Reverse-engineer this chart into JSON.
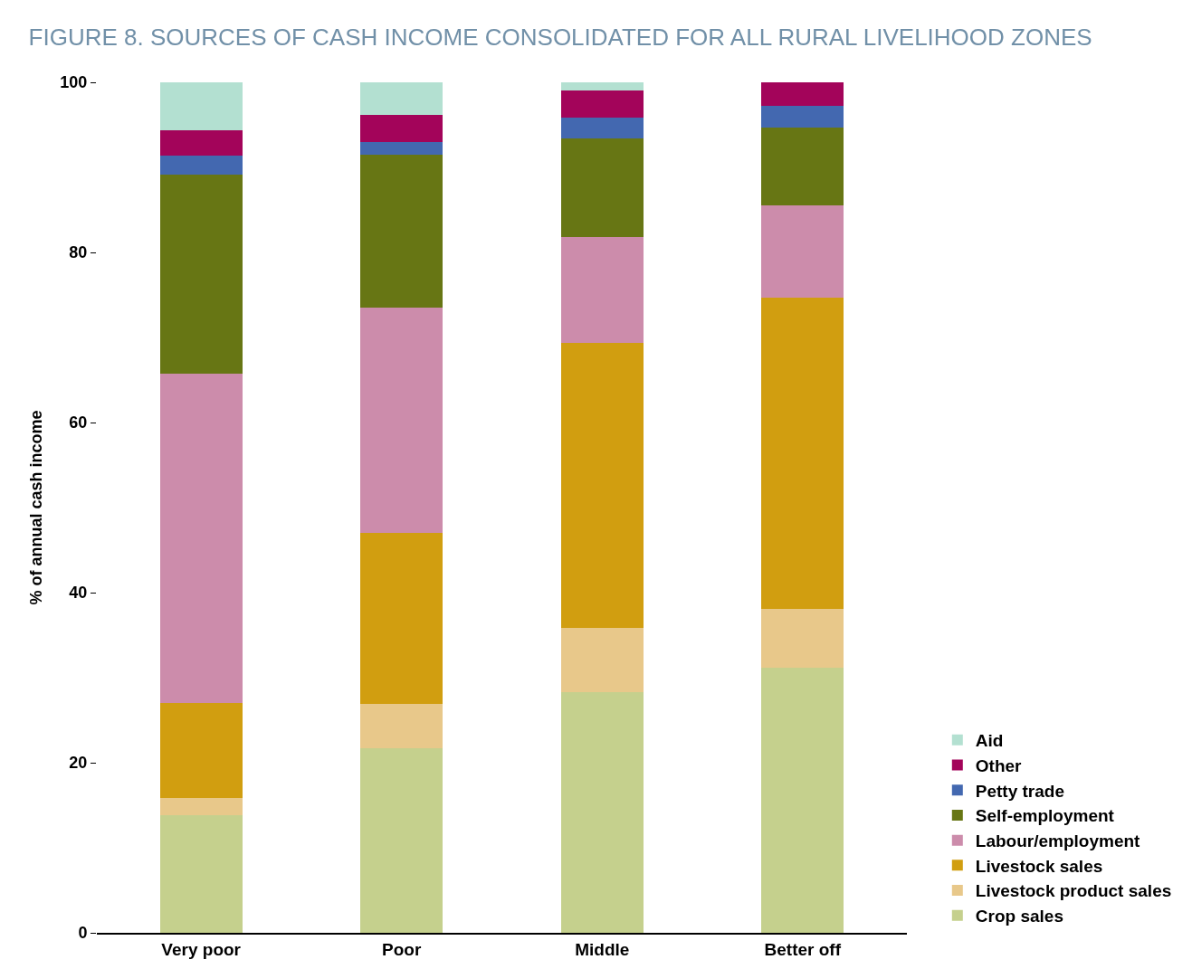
{
  "chart_data": {
    "type": "bar",
    "title": "FIGURE 8. SOURCES OF CASH INCOME CONSOLIDATED FOR ALL RURAL LIVELIHOOD ZONES",
    "ylabel": "% of annual cash income",
    "categories": [
      "Very poor",
      "Poor",
      "Middle",
      "Better off"
    ],
    "stacked": true,
    "ylim": [
      0,
      100
    ],
    "yticks": [
      0,
      20,
      40,
      60,
      80,
      100
    ],
    "legend": "right",
    "series": [
      {
        "name": "Crop sales",
        "color": "#c5d08d",
        "values": [
          13.8,
          21.7,
          28.3,
          31.2
        ]
      },
      {
        "name": "Livestock product sales",
        "color": "#e8c88a",
        "values": [
          2.1,
          5.2,
          7.6,
          6.9
        ]
      },
      {
        "name": "Livestock sales",
        "color": "#d19e10",
        "values": [
          11.1,
          20.1,
          33.5,
          36.6
        ]
      },
      {
        "name": "Labour/employment",
        "color": "#cc8cab",
        "values": [
          38.7,
          26.5,
          12.4,
          10.8
        ]
      },
      {
        "name": "Self-employment",
        "color": "#677614",
        "values": [
          23.4,
          18.0,
          11.6,
          9.2
        ]
      },
      {
        "name": "Petty trade",
        "color": "#4368b0",
        "values": [
          2.3,
          1.5,
          2.5,
          2.5
        ]
      },
      {
        "name": "Other",
        "color": "#a3045a",
        "values": [
          3.0,
          3.2,
          3.1,
          2.8
        ]
      },
      {
        "name": "Aid",
        "color": "#b3e0d1",
        "values": [
          5.6,
          3.8,
          1.0,
          0
        ]
      }
    ]
  }
}
